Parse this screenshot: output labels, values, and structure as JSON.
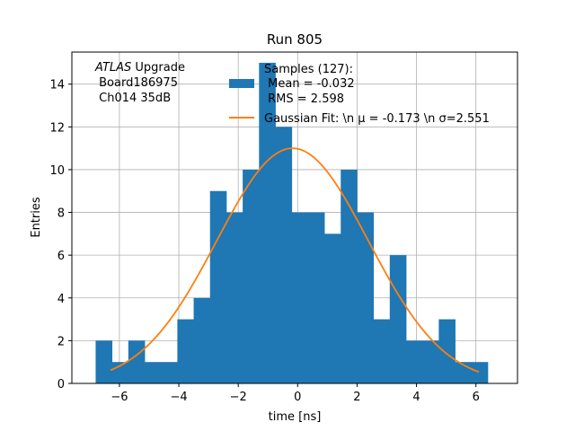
{
  "chart_data": {
    "type": "bar",
    "title": "Run 805",
    "xlabel": "time [ns]",
    "ylabel": "Entries",
    "xlim": [
      -7.6,
      7.4
    ],
    "ylim": [
      0,
      15.5
    ],
    "xticks": [
      -6,
      -4,
      -2,
      0,
      2,
      4,
      6
    ],
    "yticks": [
      0,
      2,
      4,
      6,
      8,
      10,
      12,
      14
    ],
    "xtick_labels": [
      "−6",
      "−4",
      "−2",
      "0",
      "2",
      "4",
      "6"
    ],
    "ytick_labels": [
      "0",
      "2",
      "4",
      "6",
      "8",
      "10",
      "12",
      "14"
    ],
    "grid": true,
    "bar_color": "#1f77b4",
    "fit_color": "#ff7f0e",
    "bins": {
      "edges": [
        -6.8,
        -6.25,
        -5.7,
        -5.15,
        -4.6,
        -4.05,
        -3.5,
        -2.95,
        -2.4,
        -1.85,
        -1.3,
        -0.75,
        -0.2,
        0.35,
        0.9,
        1.45,
        2.0,
        2.55,
        3.1,
        3.65,
        4.2,
        4.75,
        5.3,
        5.85,
        6.4
      ],
      "counts": [
        2,
        1,
        2,
        1,
        1,
        3,
        4,
        9,
        8,
        10,
        15,
        12,
        8,
        8,
        7,
        10,
        8,
        3,
        6,
        2,
        2,
        3,
        1,
        1
      ]
    },
    "fit": {
      "amplitude": 11.0,
      "mu": -0.173,
      "sigma": 2.551,
      "x_range": [
        -6.3,
        6.1
      ]
    },
    "legend": {
      "placement": "top-right",
      "entries": [
        {
          "kind": "patch",
          "lines": [
            "Samples (127):",
            " Mean = -0.032",
            " RMS = 2.598"
          ]
        },
        {
          "kind": "line",
          "lines": [
            "Gaussian Fit: \\n μ = -0.173 \\n σ=2.551"
          ]
        }
      ]
    },
    "annotation": {
      "placement": "top-left",
      "line1_italic": "ATLAS",
      "line1_rest": " Upgrade",
      "line2": " Board186975",
      "line3": " Ch014 35dB"
    }
  }
}
